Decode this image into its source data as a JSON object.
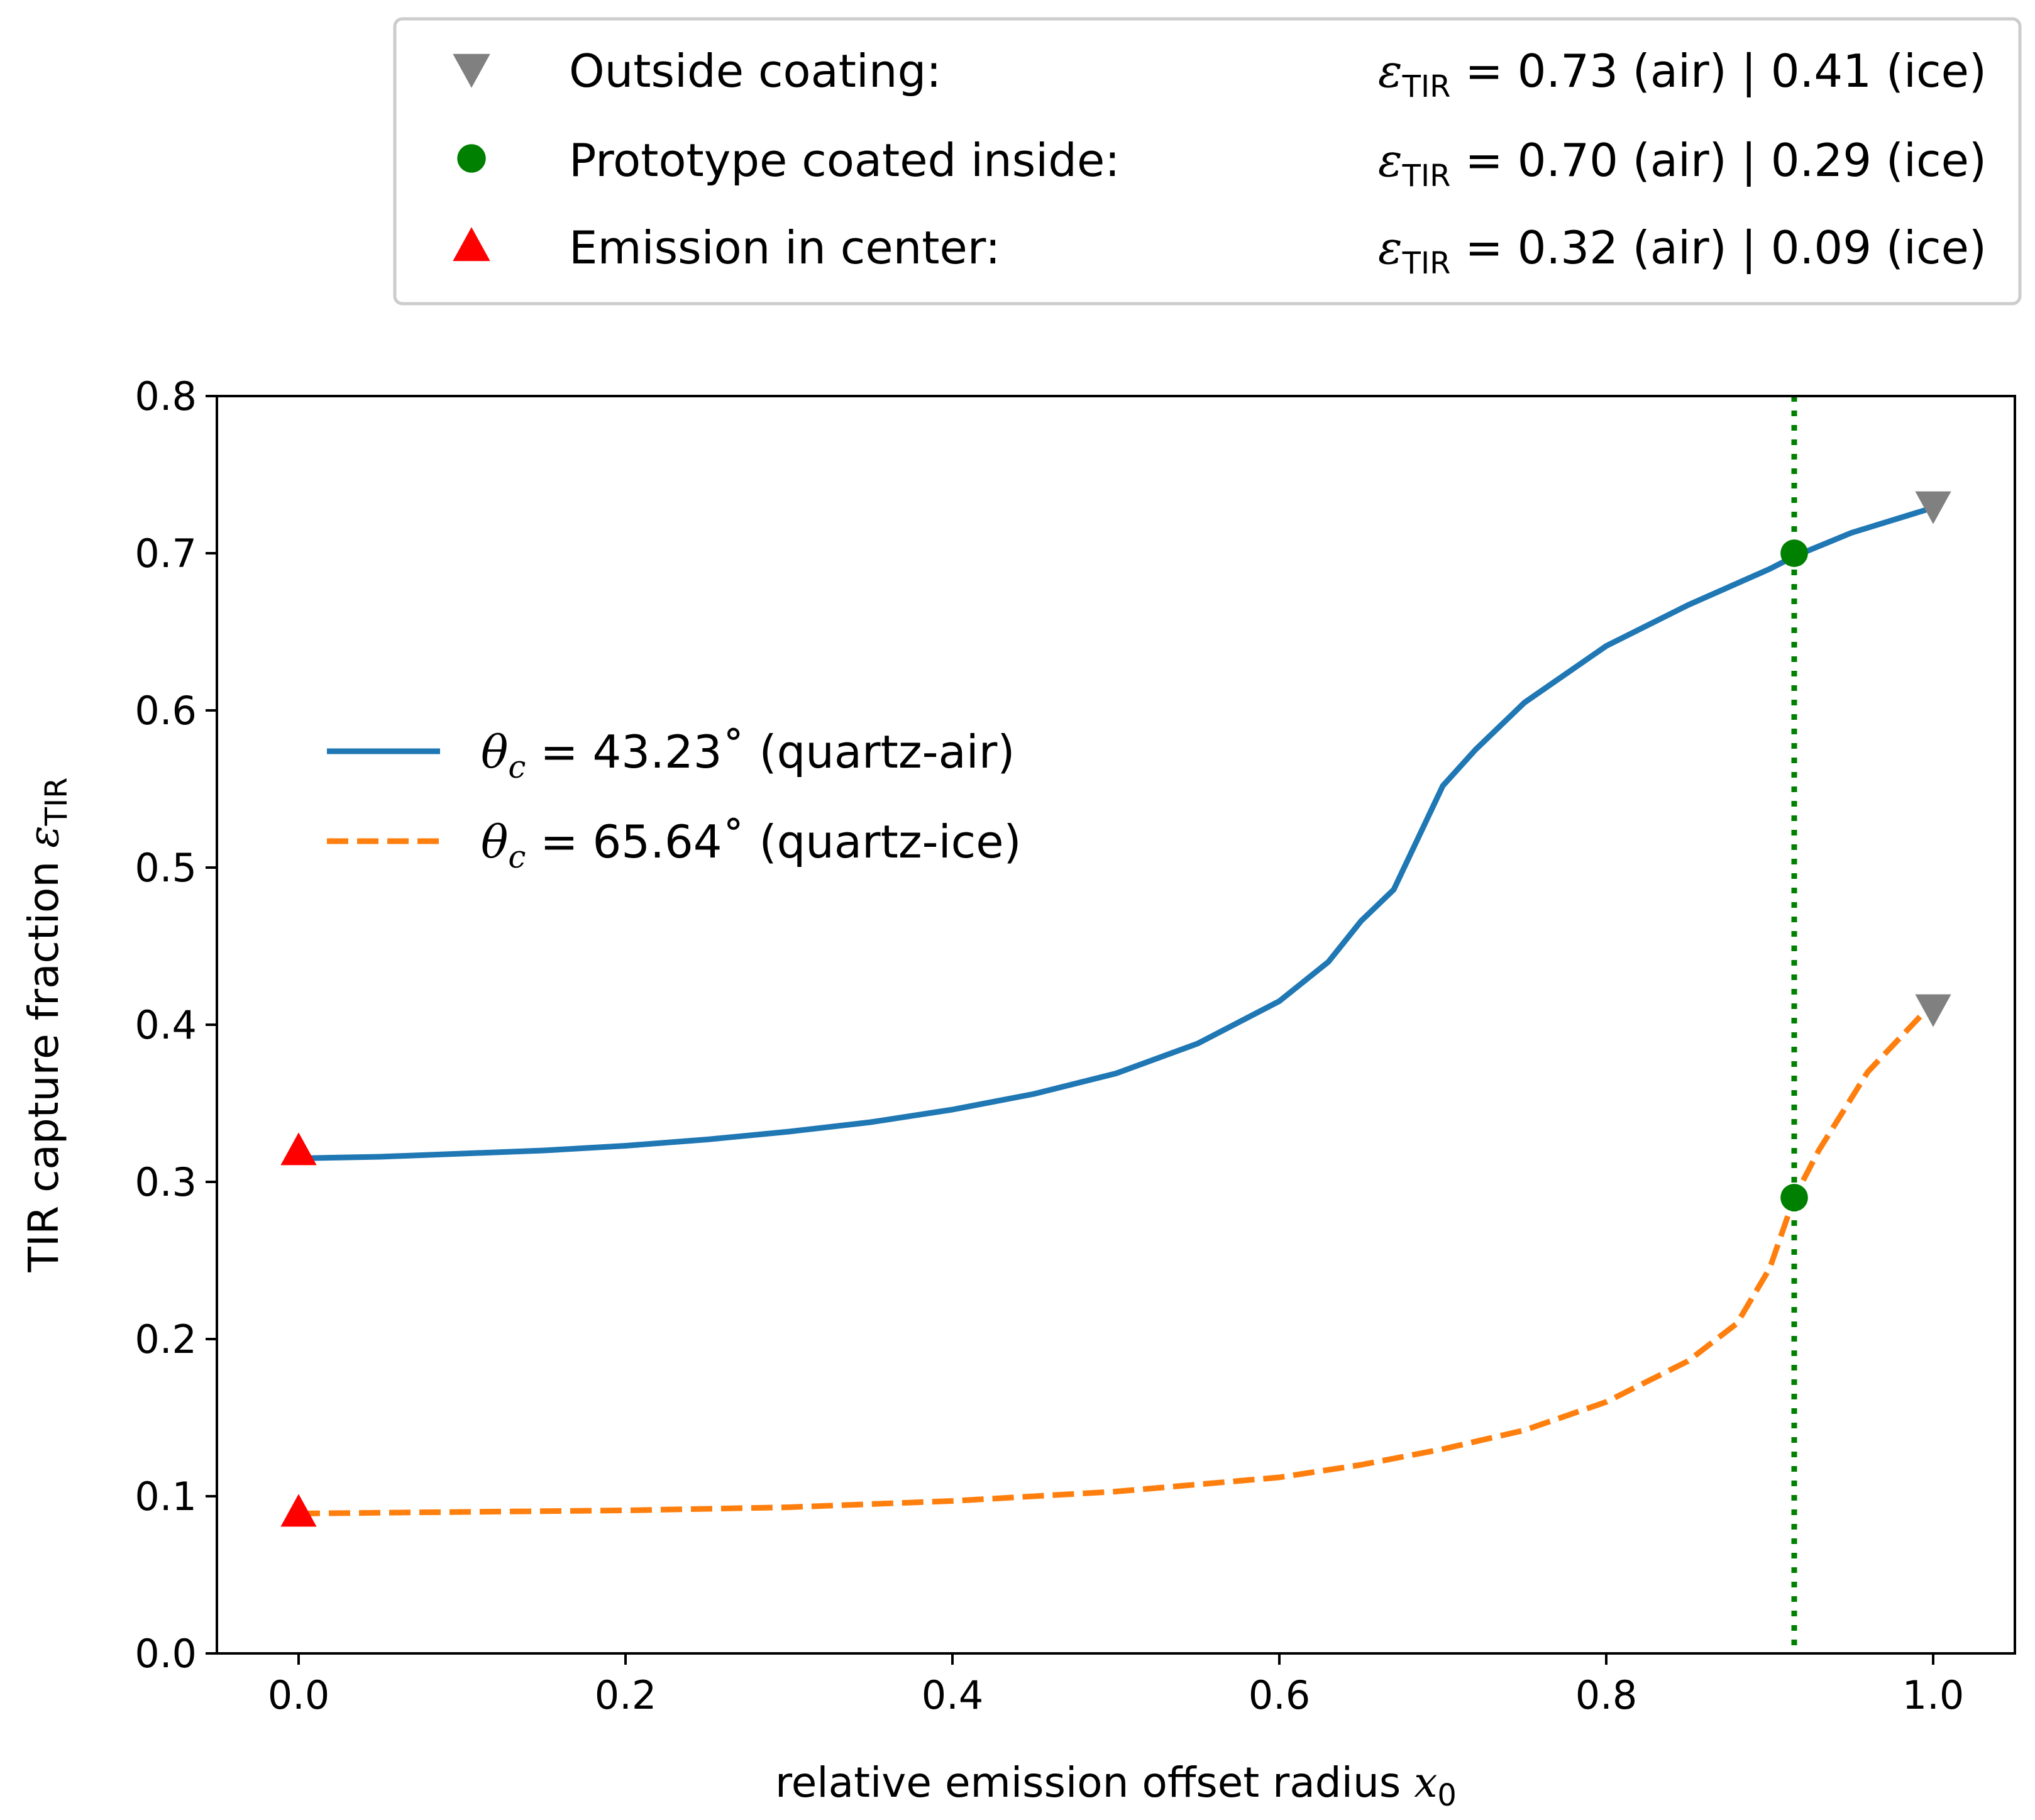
{
  "chart_data": {
    "type": "line",
    "xlabel": "relative emission offset radius x0",
    "xlabel_text": "relative emission offset radius ",
    "xlabel_symbol": "x",
    "xlabel_subscript": "0",
    "ylabel": "TIR capture fraction εTIR",
    "ylabel_text": "TIR capture fraction ",
    "ylabel_symbol": "ε",
    "ylabel_subscript": "TIR",
    "xlim": [
      -0.05,
      1.05
    ],
    "ylim": [
      0.0,
      0.8
    ],
    "xticks": [
      "0.0",
      "0.2",
      "0.4",
      "0.6",
      "0.8",
      "1.0"
    ],
    "yticks": [
      "0.0",
      "0.1",
      "0.2",
      "0.3",
      "0.4",
      "0.5",
      "0.6",
      "0.7",
      "0.8"
    ],
    "series": [
      {
        "name": "θc = 43.23˚ (quartz-air)",
        "legend_symbol": "θ",
        "legend_subscript": "c",
        "legend_value": " = 43.23˚ (quartz-air)",
        "color": "#1f77b4",
        "style": "solid",
        "x": [
          0.0,
          0.05,
          0.1,
          0.15,
          0.2,
          0.25,
          0.3,
          0.35,
          0.4,
          0.45,
          0.5,
          0.55,
          0.6,
          0.63,
          0.65,
          0.67,
          0.69,
          0.7,
          0.72,
          0.75,
          0.8,
          0.85,
          0.9,
          0.915,
          0.95,
          1.0
        ],
        "y": [
          0.315,
          0.316,
          0.318,
          0.32,
          0.323,
          0.327,
          0.332,
          0.338,
          0.346,
          0.356,
          0.369,
          0.388,
          0.415,
          0.44,
          0.466,
          0.486,
          0.53,
          0.552,
          0.575,
          0.605,
          0.641,
          0.667,
          0.69,
          0.698,
          0.713,
          0.729
        ]
      },
      {
        "name": "θc = 65.64˚ (quartz-ice)",
        "legend_symbol": "θ",
        "legend_subscript": "c",
        "legend_value": " = 65.64˚ (quartz-ice)",
        "color": "#ff7f0e",
        "style": "dashed",
        "x": [
          0.0,
          0.1,
          0.2,
          0.3,
          0.4,
          0.5,
          0.6,
          0.65,
          0.7,
          0.75,
          0.8,
          0.85,
          0.88,
          0.9,
          0.915,
          0.93,
          0.96,
          1.0
        ],
        "y": [
          0.089,
          0.09,
          0.091,
          0.093,
          0.097,
          0.103,
          0.112,
          0.12,
          0.13,
          0.142,
          0.16,
          0.186,
          0.21,
          0.245,
          0.29,
          0.32,
          0.37,
          0.414
        ]
      }
    ],
    "markers": [
      {
        "name": "Outside coating",
        "label": "Outside coating:",
        "values": "= 0.73 (air) | 0.41 (ice)",
        "shape": "triangle-down",
        "color": "#808080",
        "x": 1.0,
        "y": [
          0.73,
          0.41
        ]
      },
      {
        "name": "Prototype coated inside",
        "label": "Prototype coated inside:",
        "values": "= 0.70 (air) | 0.29 (ice)",
        "shape": "circle",
        "color": "#008000",
        "x": 0.915,
        "y": [
          0.7,
          0.29
        ]
      },
      {
        "name": "Emission in center",
        "label": "Emission in center:",
        "values": "= 0.32 (air) | 0.09 (ice)",
        "shape": "triangle-up",
        "color": "#ff0000",
        "x": 0.0,
        "y": [
          0.32,
          0.09
        ]
      }
    ],
    "marker_symbol": "ε",
    "marker_subscript": "TIR",
    "vline": {
      "x": 0.915,
      "color": "#008000",
      "style": "dotted"
    },
    "legend_placement": "outside-top-right",
    "series_legend_placement": "center-left",
    "grid": false
  }
}
